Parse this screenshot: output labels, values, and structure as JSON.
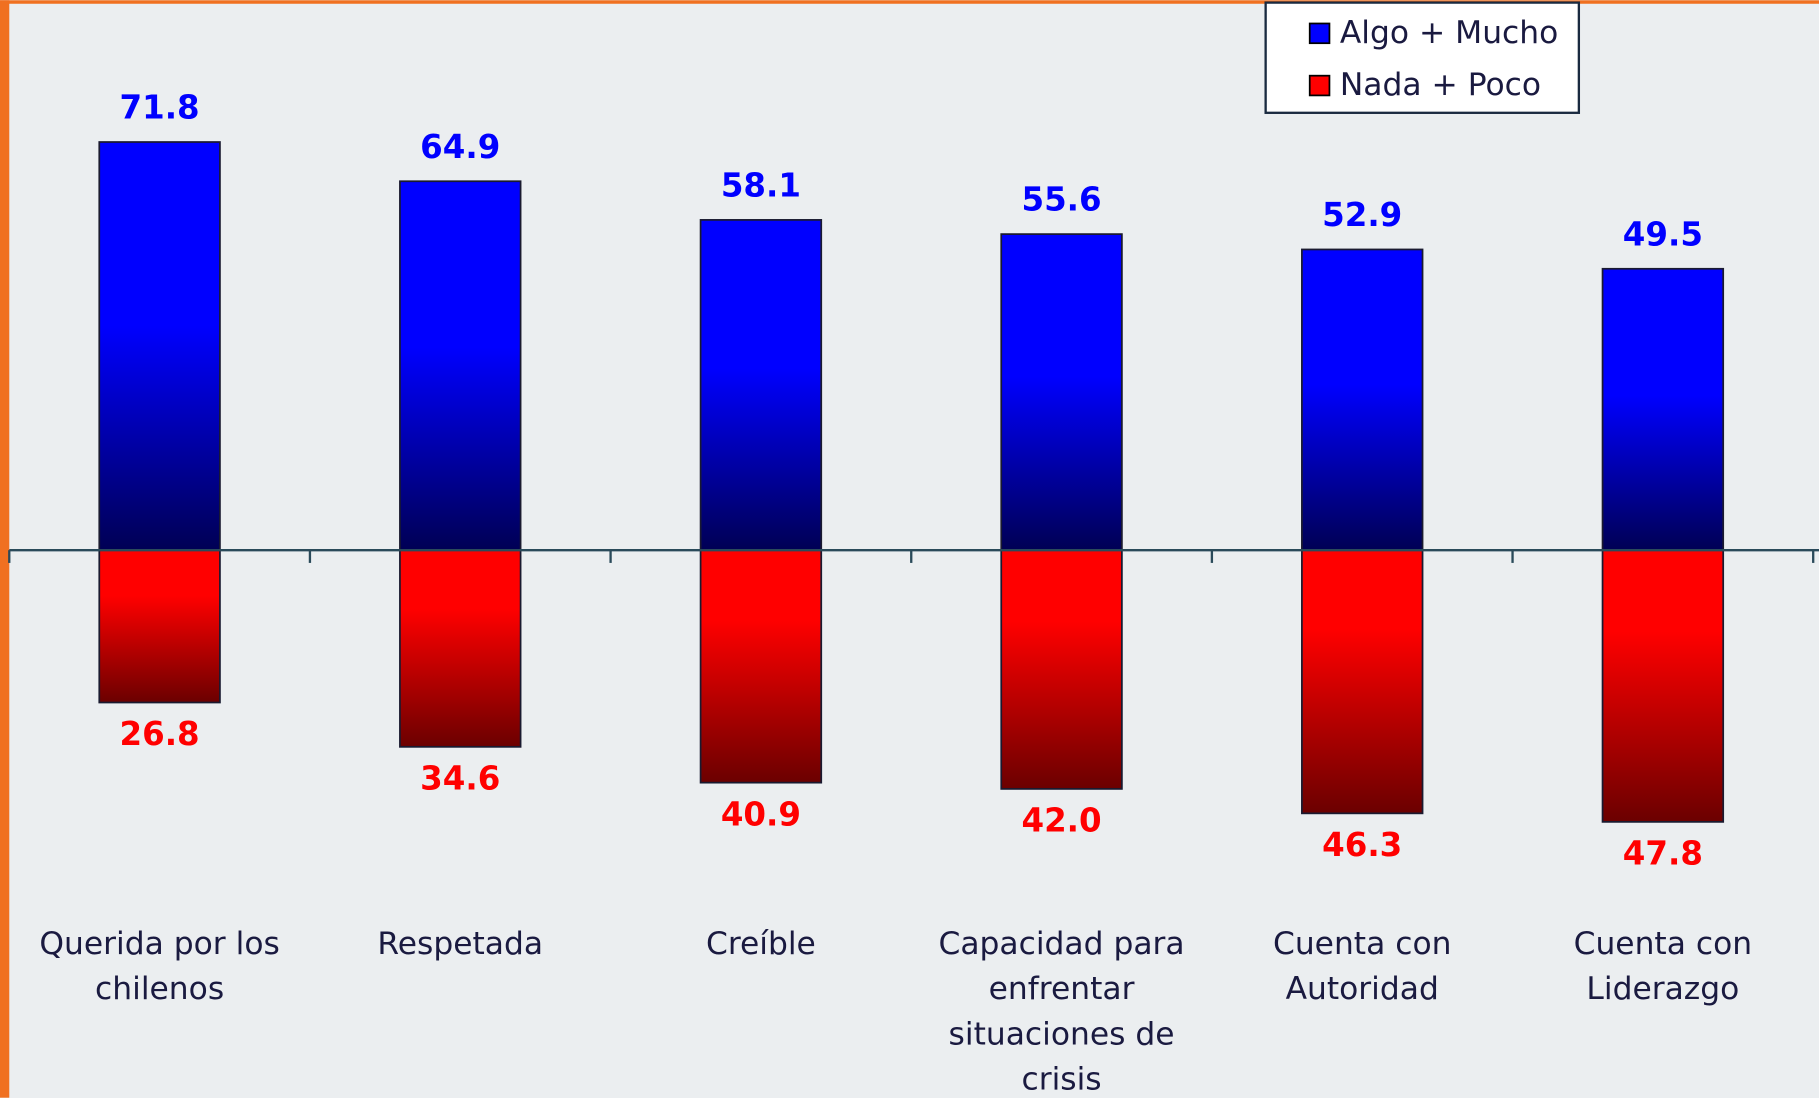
{
  "chart_data": {
    "type": "bar",
    "categories": [
      "Querida por los chilenos",
      "Respetada",
      "Creíble",
      "Capacidad para enfrentar situaciones de crisis",
      "Cuenta con Autoridad",
      "Cuenta con Liderazgo"
    ],
    "series": [
      {
        "name": "Algo + Mucho",
        "color": "#0000ff",
        "direction": "up",
        "values": [
          71.8,
          64.9,
          58.1,
          55.6,
          52.9,
          49.5
        ],
        "value_labels": [
          "71.8",
          "64.9",
          "58.1",
          "55.6",
          "52.9",
          "49.5"
        ]
      },
      {
        "name": "Nada + Poco",
        "color": "#ff0000",
        "direction": "down",
        "values": [
          26.8,
          34.6,
          40.9,
          42.0,
          46.3,
          47.8
        ],
        "value_labels": [
          "26.8",
          "34.6",
          "40.9",
          "42.0",
          "46.3",
          "47.8"
        ]
      }
    ],
    "legend": "top-right"
  }
}
